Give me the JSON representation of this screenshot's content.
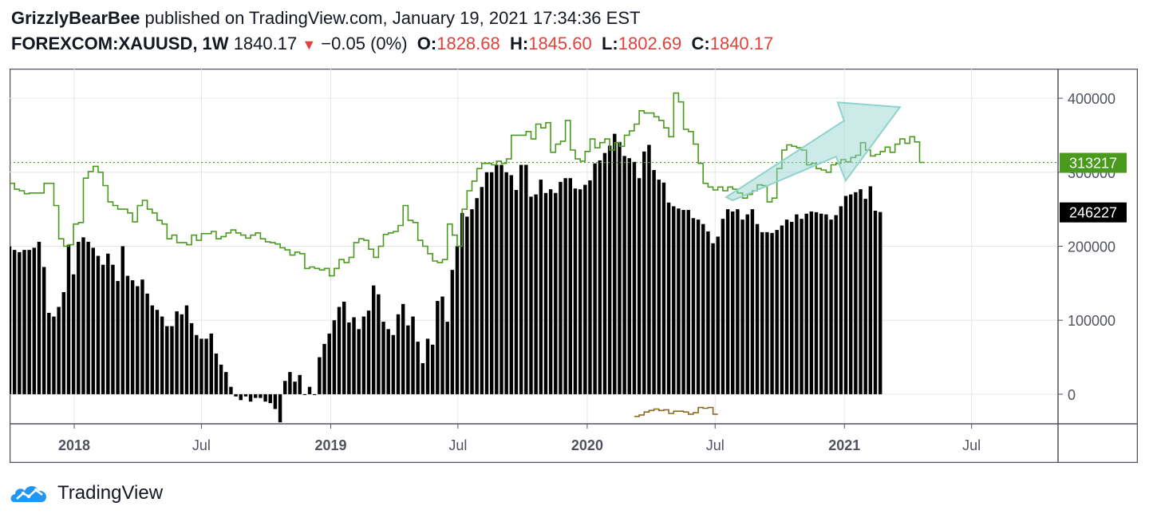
{
  "header": {
    "author": "GrizzlyBearBee",
    "published_text": "published on TradingView.com, January 19, 2021 17:34:36 EST",
    "symbol": "FOREXCOM:XAUUSD, 1W",
    "last_price": "1840.17",
    "change": "−0.05 (0%)",
    "open_label": "O:",
    "open": "1828.68",
    "high_label": "H:",
    "high": "1845.60",
    "low_label": "L:",
    "low": "1802.69",
    "close_label": "C:",
    "close": "1840.17"
  },
  "footer": {
    "brand": "TradingView"
  },
  "colors": {
    "green_line": "#4a9a1e",
    "bars": "#000000",
    "price_up": "#e0413b",
    "arrow": "#8fd3cc",
    "olive": "#8b6a1c",
    "grid": "#e6e6e6",
    "axis_text": "#50535e"
  },
  "chart_data": {
    "type": "line",
    "y_axis": {
      "ylim": [
        -40000,
        440000
      ],
      "ticks": [
        0,
        100000,
        200000,
        300000,
        400000
      ],
      "tick_labels": [
        "0",
        "100000",
        "200000",
        "300000",
        "400000"
      ]
    },
    "x_axis": {
      "tick_labels": [
        "2018",
        "Jul",
        "2019",
        "Jul",
        "2020",
        "Jul",
        "2021",
        "Jul"
      ],
      "tick_dates": [
        "2018-01-01",
        "2018-07-01",
        "2019-01-01",
        "2019-07-01",
        "2020-01-01",
        "2020-07-01",
        "2021-01-01",
        "2021-07-01"
      ],
      "range": [
        "2017-10-01",
        "2021-11-01"
      ]
    },
    "badges": [
      {
        "value": "313217",
        "series": "line"
      },
      {
        "value": "246227",
        "series": "bars"
      }
    ],
    "line_dates_start": "2017-10-01",
    "bars_dates_start": "2017-10-01",
    "series": [
      {
        "type": "step-line",
        "values": [
          285000,
          277000,
          275000,
          271000,
          272000,
          272000,
          272000,
          285000,
          285000,
          255000,
          210000,
          200000,
          202000,
          230000,
          232000,
          292000,
          301000,
          308000,
          300000,
          282000,
          260000,
          255000,
          250000,
          250000,
          245000,
          233000,
          255000,
          262000,
          250000,
          245000,
          235000,
          230000,
          210000,
          215000,
          205000,
          205000,
          202000,
          215000,
          208000,
          217000,
          217000,
          220000,
          210000,
          213000,
          218000,
          222000,
          218000,
          215000,
          211000,
          215000,
          218000,
          210000,
          206000,
          205000,
          203000,
          198000,
          195000,
          188000,
          192000,
          190000,
          170000,
          172000,
          170000,
          168000,
          170000,
          160000,
          170000,
          182000,
          178000,
          185000,
          205000,
          210000,
          208000,
          196000,
          185000,
          200000,
          216000,
          218000,
          220000,
          228000,
          255000,
          235000,
          232000,
          208000,
          200000,
          190000,
          180000,
          178000,
          182000,
          230000,
          215000,
          200000,
          250000,
          275000,
          288000,
          305000,
          312000,
          312000,
          310000,
          315000,
          312000,
          318000,
          350000,
          350000,
          350000,
          355000,
          345000,
          365000,
          360000,
          367000,
          327000,
          338000,
          342000,
          370000,
          330000,
          318000,
          315000,
          328000,
          345000,
          333000,
          340000,
          345000,
          330000,
          340000,
          335000,
          350000,
          356000,
          365000,
          383000,
          380000,
          380000,
          375000,
          370000,
          360000,
          348000,
          407000,
          395000,
          358000,
          355000,
          338000,
          312000,
          285000,
          280000,
          276000,
          280000,
          275000,
          280000,
          277000,
          272000,
          265000,
          270000,
          275000,
          283000,
          282000,
          260000,
          265000,
          305000,
          330000,
          337000,
          335000,
          333000,
          330000,
          310000,
          312000,
          305000,
          303000,
          300000,
          310000,
          312000,
          317000,
          314000,
          320000,
          323000,
          340000,
          330000,
          322000,
          324000,
          328000,
          334000,
          327000,
          338000,
          345000,
          339000,
          348000,
          341000,
          313217
        ]
      },
      {
        "type": "columns",
        "values": [
          200000,
          195000,
          192000,
          195000,
          195000,
          198000,
          206000,
          172000,
          110000,
          105000,
          118000,
          138000,
          202000,
          162000,
          206000,
          212000,
          206000,
          198000,
          187000,
          175000,
          190000,
          175000,
          153000,
          200000,
          160000,
          154000,
          146000,
          155000,
          136000,
          120000,
          114000,
          105000,
          92000,
          92000,
          112000,
          108000,
          120000,
          96000,
          80000,
          75000,
          75000,
          82000,
          55000,
          40000,
          30000,
          10000,
          -3000,
          -8000,
          -3000,
          -10000,
          -5000,
          -5000,
          -10000,
          -12000,
          -20000,
          -38000,
          18000,
          30000,
          17000,
          26000,
          0,
          10000,
          0,
          50000,
          68000,
          82000,
          100000,
          118000,
          125000,
          97000,
          104000,
          88000,
          105000,
          113000,
          147000,
          135000,
          98000,
          88000,
          80000,
          108000,
          122000,
          93000,
          105000,
          71000,
          42000,
          75000,
          67000,
          126000,
          132000,
          98000,
          168000,
          200000,
          245000,
          240000,
          250000,
          265000,
          280000,
          300000,
          300000,
          310000,
          310000,
          300000,
          296000,
          276000,
          310000,
          310000,
          267000,
          270000,
          290000,
          272000,
          277000,
          272000,
          287000,
          292000,
          292000,
          278000,
          277000,
          283000,
          289000,
          312000,
          316000,
          326000,
          336000,
          352000,
          341000,
          322000,
          319000,
          314000,
          292000,
          328000,
          337000,
          303000,
          290000,
          286000,
          259000,
          254000,
          251000,
          249000,
          249000,
          238000,
          236000,
          230000,
          220000,
          204000,
          213000,
          237000,
          250000,
          247000,
          250000,
          236000,
          243000,
          250000,
          230000,
          219000,
          219000,
          218000,
          222000,
          228000,
          236000,
          233000,
          243000,
          237000,
          244000,
          247000,
          246000,
          244000,
          243000,
          236000,
          242000,
          254000,
          268000,
          270000,
          273000,
          277000,
          264000,
          281000,
          248000,
          246227
        ]
      },
      {
        "type": "line",
        "values": [
          -30000,
          -28000,
          -24000,
          -22000,
          -20000,
          -22000,
          -21000,
          -26000,
          -23000,
          -23000,
          -24000,
          -27000,
          -25000,
          -18000,
          -19000,
          -18000,
          -27000
        ]
      }
    ]
  }
}
